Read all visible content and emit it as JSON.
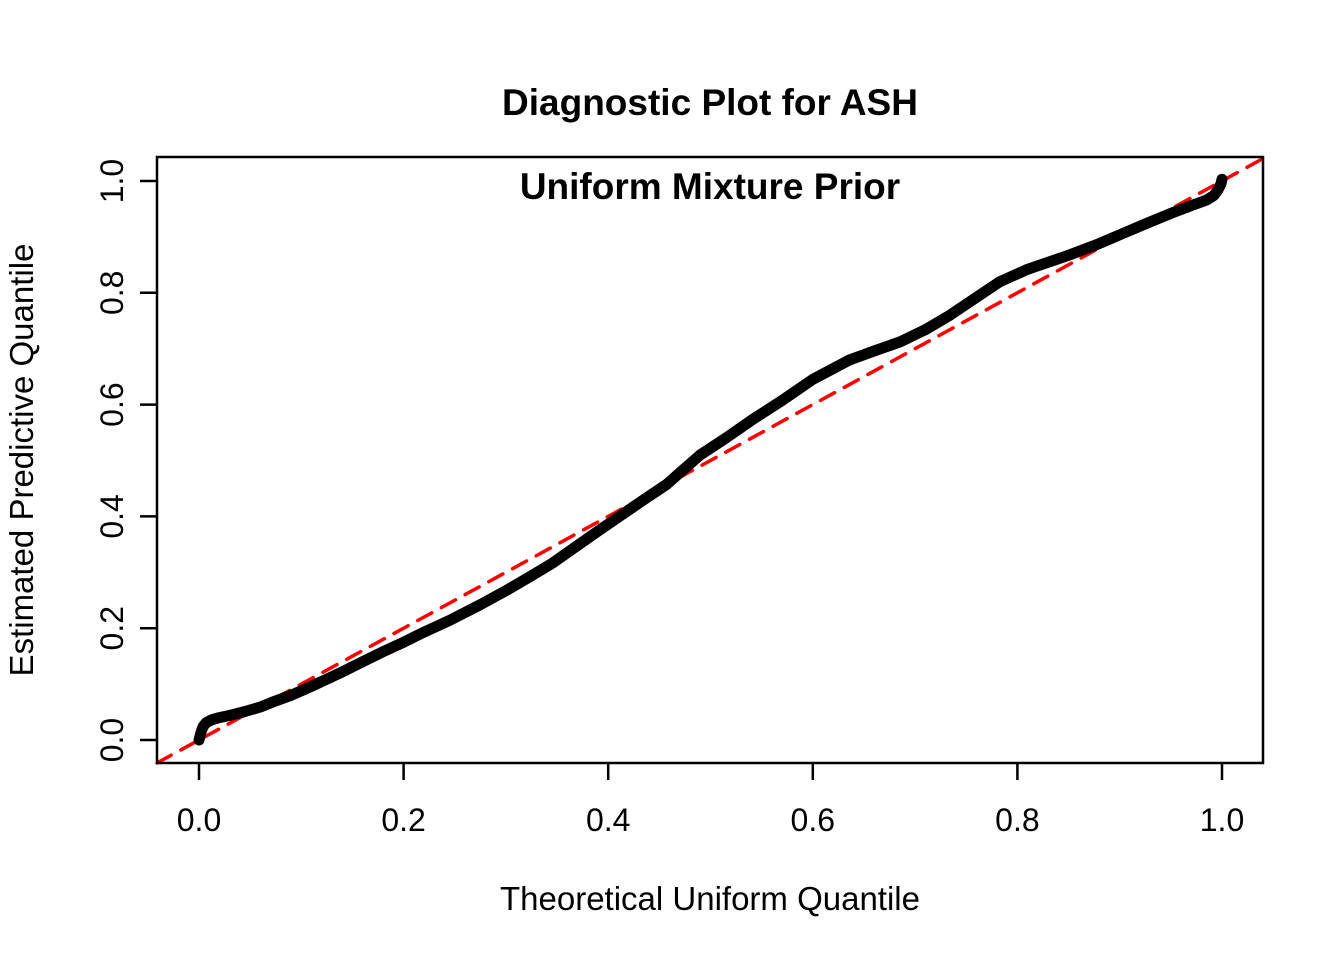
{
  "figure": {
    "title_line1": "Diagnostic Plot for ASH",
    "title_line2": "Uniform Mixture Prior",
    "title": "Diagnostic Plot for ASH\nUniform Mixture Prior",
    "xlabel": "Theoretical Uniform Quantile",
    "ylabel": "Estimated Predictive Quantile"
  },
  "colors": {
    "background": "#ffffff",
    "axis": "#000000",
    "curve": "#000000",
    "reference_line": "#ff0000"
  },
  "chart_data": {
    "type": "line",
    "title": "Diagnostic Plot for ASH\nUniform Mixture Prior",
    "xlabel": "Theoretical Uniform Quantile",
    "ylabel": "Estimated Predictive Quantile",
    "xlim": [
      -0.041,
      1.041
    ],
    "ylim": [
      -0.041,
      1.043
    ],
    "grid": false,
    "legend": "none",
    "x_ticks": [
      0.0,
      0.2,
      0.4,
      0.6,
      0.8,
      1.0
    ],
    "y_ticks": [
      0.0,
      0.2,
      0.4,
      0.6,
      0.8,
      1.0
    ],
    "x_tick_labels": [
      "0.0",
      "0.2",
      "0.4",
      "0.6",
      "0.8",
      "1.0"
    ],
    "y_tick_labels": [
      "0.0",
      "0.2",
      "0.4",
      "0.6",
      "0.8",
      "1.0"
    ],
    "series": [
      {
        "name": "estimated-predictive-quantile-curve",
        "type": "line",
        "style": "solid",
        "color": "#000000",
        "line_width": 11,
        "points": [
          [
            0.0,
            0.0
          ],
          [
            0.002,
            0.014
          ],
          [
            0.004,
            0.024
          ],
          [
            0.007,
            0.031
          ],
          [
            0.012,
            0.036
          ],
          [
            0.02,
            0.04
          ],
          [
            0.03,
            0.044
          ],
          [
            0.045,
            0.051
          ],
          [
            0.06,
            0.059
          ],
          [
            0.075,
            0.07
          ],
          [
            0.09,
            0.08
          ],
          [
            0.11,
            0.096
          ],
          [
            0.138,
            0.12
          ],
          [
            0.16,
            0.14
          ],
          [
            0.18,
            0.158
          ],
          [
            0.2,
            0.175
          ],
          [
            0.22,
            0.193
          ],
          [
            0.245,
            0.214
          ],
          [
            0.275,
            0.242
          ],
          [
            0.3,
            0.267
          ],
          [
            0.325,
            0.294
          ],
          [
            0.346,
            0.317
          ],
          [
            0.37,
            0.348
          ],
          [
            0.392,
            0.376
          ],
          [
            0.415,
            0.405
          ],
          [
            0.435,
            0.43
          ],
          [
            0.457,
            0.457
          ],
          [
            0.47,
            0.478
          ],
          [
            0.49,
            0.51
          ],
          [
            0.515,
            0.54
          ],
          [
            0.54,
            0.572
          ],
          [
            0.568,
            0.605
          ],
          [
            0.6,
            0.645
          ],
          [
            0.636,
            0.68
          ],
          [
            0.66,
            0.696
          ],
          [
            0.685,
            0.712
          ],
          [
            0.71,
            0.734
          ],
          [
            0.734,
            0.76
          ],
          [
            0.76,
            0.792
          ],
          [
            0.783,
            0.82
          ],
          [
            0.81,
            0.842
          ],
          [
            0.85,
            0.867
          ],
          [
            0.88,
            0.888
          ],
          [
            0.903,
            0.906
          ],
          [
            0.93,
            0.927
          ],
          [
            0.95,
            0.942
          ],
          [
            0.97,
            0.956
          ],
          [
            0.985,
            0.966
          ],
          [
            0.992,
            0.974
          ],
          [
            0.996,
            0.984
          ],
          [
            0.999,
            0.995
          ],
          [
            1.0,
            1.003
          ]
        ]
      },
      {
        "name": "reference-diagonal-y-equals-x",
        "type": "line",
        "style": "dashed",
        "color": "#ff0000",
        "line_width": 3.5,
        "points": [
          [
            -0.041,
            -0.041
          ],
          [
            1.04,
            1.04
          ]
        ]
      }
    ]
  }
}
